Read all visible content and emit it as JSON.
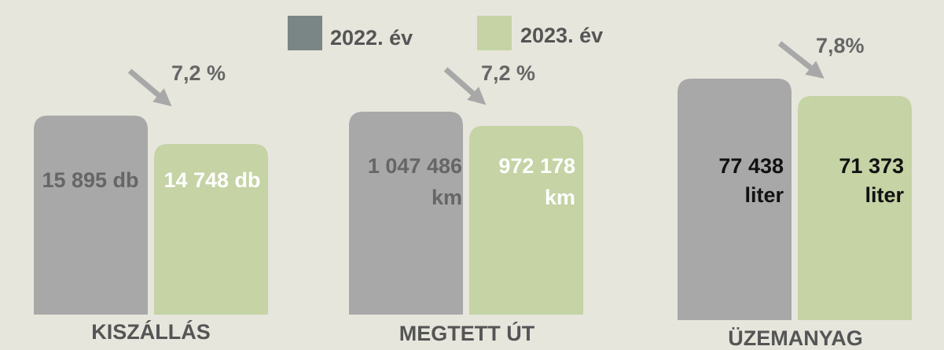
{
  "legend": [
    "2022. év",
    "2023. év"
  ],
  "groups": [
    {
      "label": "KISZÁLLÁS",
      "change": "7,2 %",
      "values": [
        [
          "15 895 db"
        ],
        [
          "14 748 db"
        ]
      ]
    },
    {
      "label": "MEGTETT ÚT",
      "change": "7,2 %",
      "values": [
        [
          "1 047 486",
          "km"
        ],
        [
          "972 178",
          "km"
        ]
      ]
    },
    {
      "label": "ÜZEMANYAG",
      "change": "7,8%",
      "values": [
        [
          "77 438",
          "liter"
        ],
        [
          "71 373",
          "liter"
        ]
      ]
    }
  ]
}
